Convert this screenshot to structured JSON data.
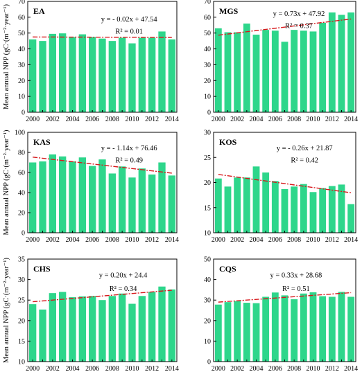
{
  "y_axis_label": "Mean annual NPP (gC·(m⁻²·year⁻¹)",
  "chart_data": [
    {
      "type": "bar",
      "title": "EA",
      "x": [
        2000,
        2001,
        2002,
        2003,
        2004,
        2005,
        2006,
        2007,
        2008,
        2009,
        2010,
        2011,
        2012,
        2013,
        2014
      ],
      "values": [
        46,
        45,
        49.5,
        49.8,
        47.5,
        49.2,
        47.5,
        46.5,
        45,
        47,
        43.5,
        47,
        47,
        51,
        46
      ],
      "xticks": [
        "2000",
        "2002",
        "2004",
        "2006",
        "2008",
        "2010",
        "2012",
        "2014"
      ],
      "ylim": [
        0,
        70
      ],
      "yticks": [
        "0",
        "10",
        "20",
        "30",
        "40",
        "50",
        "60",
        "70"
      ],
      "ylabel": "Mean annual NPP (gC·(m⁻²·year⁻¹)",
      "trend": {
        "slope": -0.02,
        "intercept": 47.54
      },
      "equation": "y = - 0.02x + 47.54",
      "r2": "R² = 0.01",
      "bar_color": "#2ED68B",
      "trend_color": "#D7191C"
    },
    {
      "type": "bar",
      "title": "MGS",
      "x": [
        2000,
        2001,
        2002,
        2003,
        2004,
        2005,
        2006,
        2007,
        2008,
        2009,
        2010,
        2011,
        2012,
        2013,
        2014
      ],
      "values": [
        53,
        50.5,
        50.5,
        56,
        49,
        52,
        51.5,
        44.5,
        52,
        51.5,
        51,
        56.5,
        63,
        61.5,
        63
      ],
      "xticks": [
        "2000",
        "2002",
        "2004",
        "2006",
        "2008",
        "2010",
        "2012",
        "2014"
      ],
      "ylim": [
        0,
        70
      ],
      "yticks": [
        "0",
        "10",
        "20",
        "30",
        "40",
        "50",
        "60",
        "70"
      ],
      "ylabel": "",
      "trend": {
        "slope": 0.73,
        "intercept": 47.92
      },
      "equation": "y = 0.73x + 47.92",
      "r2": "R² = 0.37",
      "bar_color": "#2ED68B",
      "trend_color": "#D7191C"
    },
    {
      "type": "bar",
      "title": "KAS",
      "x": [
        2000,
        2001,
        2002,
        2003,
        2004,
        2005,
        2006,
        2007,
        2008,
        2009,
        2010,
        2011,
        2012,
        2013,
        2014
      ],
      "values": [
        70,
        71,
        78,
        76,
        71,
        75,
        66.5,
        73,
        59,
        66,
        55,
        64,
        58,
        70,
        57
      ],
      "xticks": [
        "2000",
        "2002",
        "2004",
        "2006",
        "2008",
        "2010",
        "2012",
        "2014"
      ],
      "ylim": [
        0,
        100
      ],
      "yticks": [
        "0",
        "20",
        "40",
        "60",
        "80",
        "100"
      ],
      "ylabel": "Mean annual NPP (gC·(m⁻²·year⁻¹)",
      "trend": {
        "slope": -1.14,
        "intercept": 76.46
      },
      "equation": "y = - 1.14x + 76.46",
      "r2": "R² = 0.49",
      "bar_color": "#2ED68B",
      "trend_color": "#D7191C"
    },
    {
      "type": "bar",
      "title": "KOS",
      "x": [
        2000,
        2001,
        2002,
        2003,
        2004,
        2005,
        2006,
        2007,
        2008,
        2009,
        2010,
        2011,
        2012,
        2013,
        2014
      ],
      "values": [
        20.8,
        19.2,
        21,
        21,
        23.2,
        22,
        20.3,
        18.7,
        19.2,
        19.7,
        18.1,
        18.9,
        19.3,
        19.6,
        15.7
      ],
      "xticks": [
        "2000",
        "2002",
        "2004",
        "2006",
        "2008",
        "2010",
        "2012",
        "2014"
      ],
      "ylim": [
        10,
        30
      ],
      "yticks": [
        "10",
        "15",
        "20",
        "25",
        "30"
      ],
      "ylabel": "",
      "trend": {
        "slope": -0.26,
        "intercept": 21.87
      },
      "equation": "y = - 0.26x + 21.87",
      "r2": "R² = 0.42",
      "bar_color": "#2ED68B",
      "trend_color": "#D7191C"
    },
    {
      "type": "bar",
      "title": "CHS",
      "x": [
        2000,
        2001,
        2002,
        2003,
        2004,
        2005,
        2006,
        2007,
        2008,
        2009,
        2010,
        2011,
        2012,
        2013,
        2014
      ],
      "values": [
        24,
        22.7,
        26.7,
        27,
        25.7,
        25.9,
        26,
        25,
        26,
        26.6,
        24.1,
        26,
        27,
        28.3,
        27.6
      ],
      "xticks": [
        "2000",
        "2002",
        "2004",
        "2006",
        "2008",
        "2010",
        "2012",
        "2014"
      ],
      "ylim": [
        10,
        35
      ],
      "yticks": [
        "10",
        "15",
        "20",
        "25",
        "30",
        "35"
      ],
      "ylabel": "Mean annual NPP (gC·(m⁻²·year⁻¹)",
      "trend": {
        "slope": 0.2,
        "intercept": 24.4
      },
      "equation": "y = 0.20x + 24.4",
      "r2": "R² = 0.34",
      "bar_color": "#2ED68B",
      "trend_color": "#D7191C"
    },
    {
      "type": "bar",
      "title": "CQS",
      "x": [
        2000,
        2001,
        2002,
        2003,
        2004,
        2005,
        2006,
        2007,
        2008,
        2009,
        2010,
        2011,
        2012,
        2013,
        2014
      ],
      "values": [
        27.8,
        29,
        29.5,
        28.7,
        28.5,
        31.6,
        33.7,
        32.3,
        30.4,
        33.2,
        33.8,
        31.9,
        31.6,
        34,
        31.6
      ],
      "xticks": [
        "2000",
        "2002",
        "2004",
        "2006",
        "2008",
        "2010",
        "2012",
        "2014"
      ],
      "ylim": [
        0,
        50
      ],
      "yticks": [
        "0",
        "10",
        "20",
        "30",
        "40",
        "50"
      ],
      "ylabel": "",
      "trend": {
        "slope": 0.33,
        "intercept": 28.68
      },
      "equation": "y = 0.33x + 28.68",
      "r2": "R² = 0.51",
      "bar_color": "#2ED68B",
      "trend_color": "#D7191C"
    }
  ]
}
